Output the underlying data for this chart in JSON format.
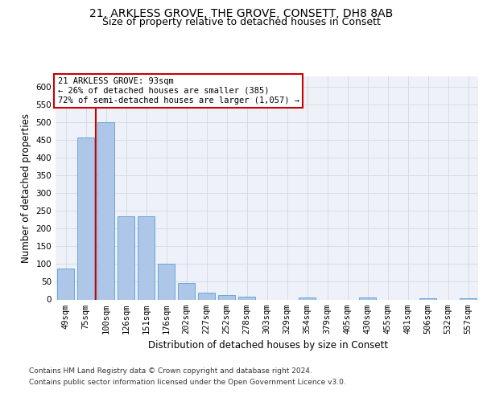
{
  "title_line1": "21, ARKLESS GROVE, THE GROVE, CONSETT, DH8 8AB",
  "title_line2": "Size of property relative to detached houses in Consett",
  "xlabel": "Distribution of detached houses by size in Consett",
  "ylabel": "Number of detached properties",
  "categories": [
    "49sqm",
    "75sqm",
    "100sqm",
    "126sqm",
    "151sqm",
    "176sqm",
    "202sqm",
    "227sqm",
    "252sqm",
    "278sqm",
    "303sqm",
    "329sqm",
    "354sqm",
    "379sqm",
    "405sqm",
    "430sqm",
    "455sqm",
    "481sqm",
    "506sqm",
    "532sqm",
    "557sqm"
  ],
  "values": [
    88,
    457,
    500,
    235,
    235,
    102,
    47,
    20,
    13,
    8,
    0,
    0,
    6,
    0,
    0,
    5,
    0,
    0,
    4,
    0,
    4
  ],
  "bar_color": "#aec6e8",
  "bar_edge_color": "#5a9fd4",
  "vline_x": 1.5,
  "vline_color": "#cc0000",
  "annotation_text": "21 ARKLESS GROVE: 93sqm\n← 26% of detached houses are smaller (385)\n72% of semi-detached houses are larger (1,057) →",
  "annotation_box_color": "#ffffff",
  "annotation_box_edge": "#cc0000",
  "ylim": [
    0,
    630
  ],
  "yticks": [
    0,
    50,
    100,
    150,
    200,
    250,
    300,
    350,
    400,
    450,
    500,
    550,
    600
  ],
  "grid_color": "#d0d8e8",
  "bg_color": "#eef2f8",
  "footer_line1": "Contains HM Land Registry data © Crown copyright and database right 2024.",
  "footer_line2": "Contains public sector information licensed under the Open Government Licence v3.0.",
  "title_fontsize": 10,
  "subtitle_fontsize": 9,
  "axis_label_fontsize": 8.5,
  "tick_fontsize": 7.5,
  "annotation_fontsize": 7.5,
  "footer_fontsize": 6.5
}
